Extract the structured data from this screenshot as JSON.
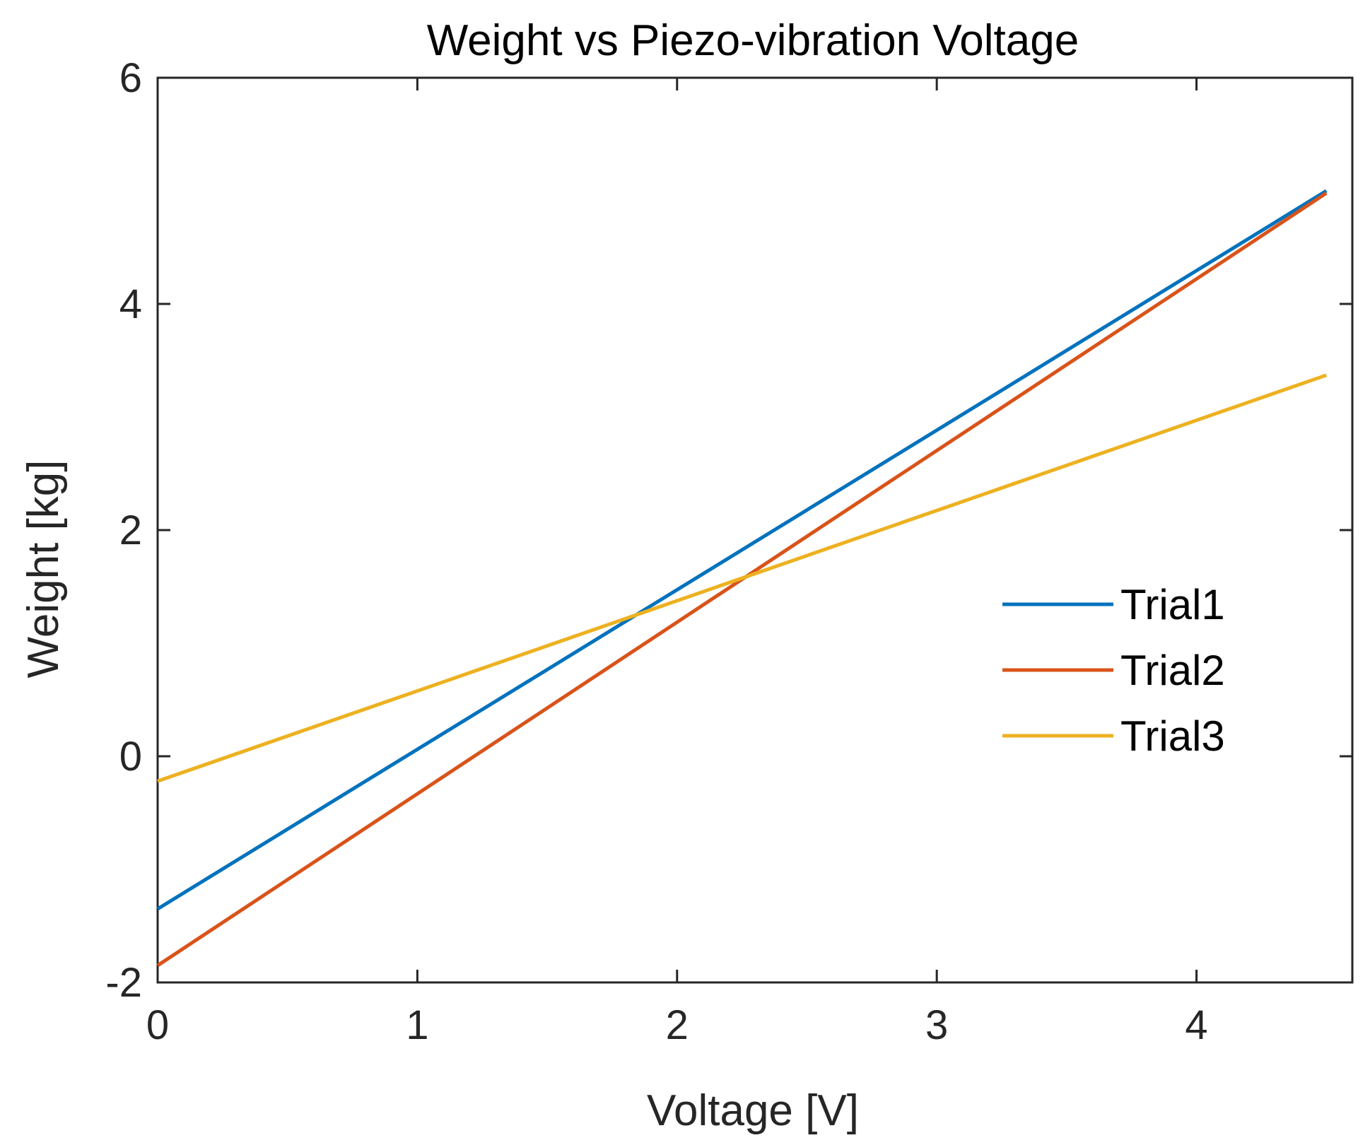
{
  "chart_data": {
    "type": "line",
    "title": "Weight vs Piezo-vibration Voltage",
    "xlabel": "Voltage [V]",
    "ylabel": "Weight [kg]",
    "xlim": [
      0,
      4.6
    ],
    "ylim": [
      -2,
      6
    ],
    "xticks": [
      0,
      1,
      2,
      3,
      4
    ],
    "yticks": [
      -2,
      0,
      2,
      4,
      6
    ],
    "xtick_labels": [
      "0",
      "1",
      "2",
      "3",
      "4"
    ],
    "ytick_labels": [
      "-2",
      "0",
      "2",
      "4",
      "6"
    ],
    "grid": false,
    "legend_position": "right",
    "series": [
      {
        "name": "Trial1",
        "color": "#0072BD",
        "x": [
          0,
          4.5
        ],
        "y": [
          -1.35,
          5.0
        ]
      },
      {
        "name": "Trial2",
        "color": "#D95319",
        "x": [
          0,
          4.5
        ],
        "y": [
          -1.85,
          4.98
        ]
      },
      {
        "name": "Trial3",
        "color": "#EDB120",
        "x": [
          0,
          4.5
        ],
        "y": [
          -0.22,
          3.37
        ]
      }
    ]
  }
}
